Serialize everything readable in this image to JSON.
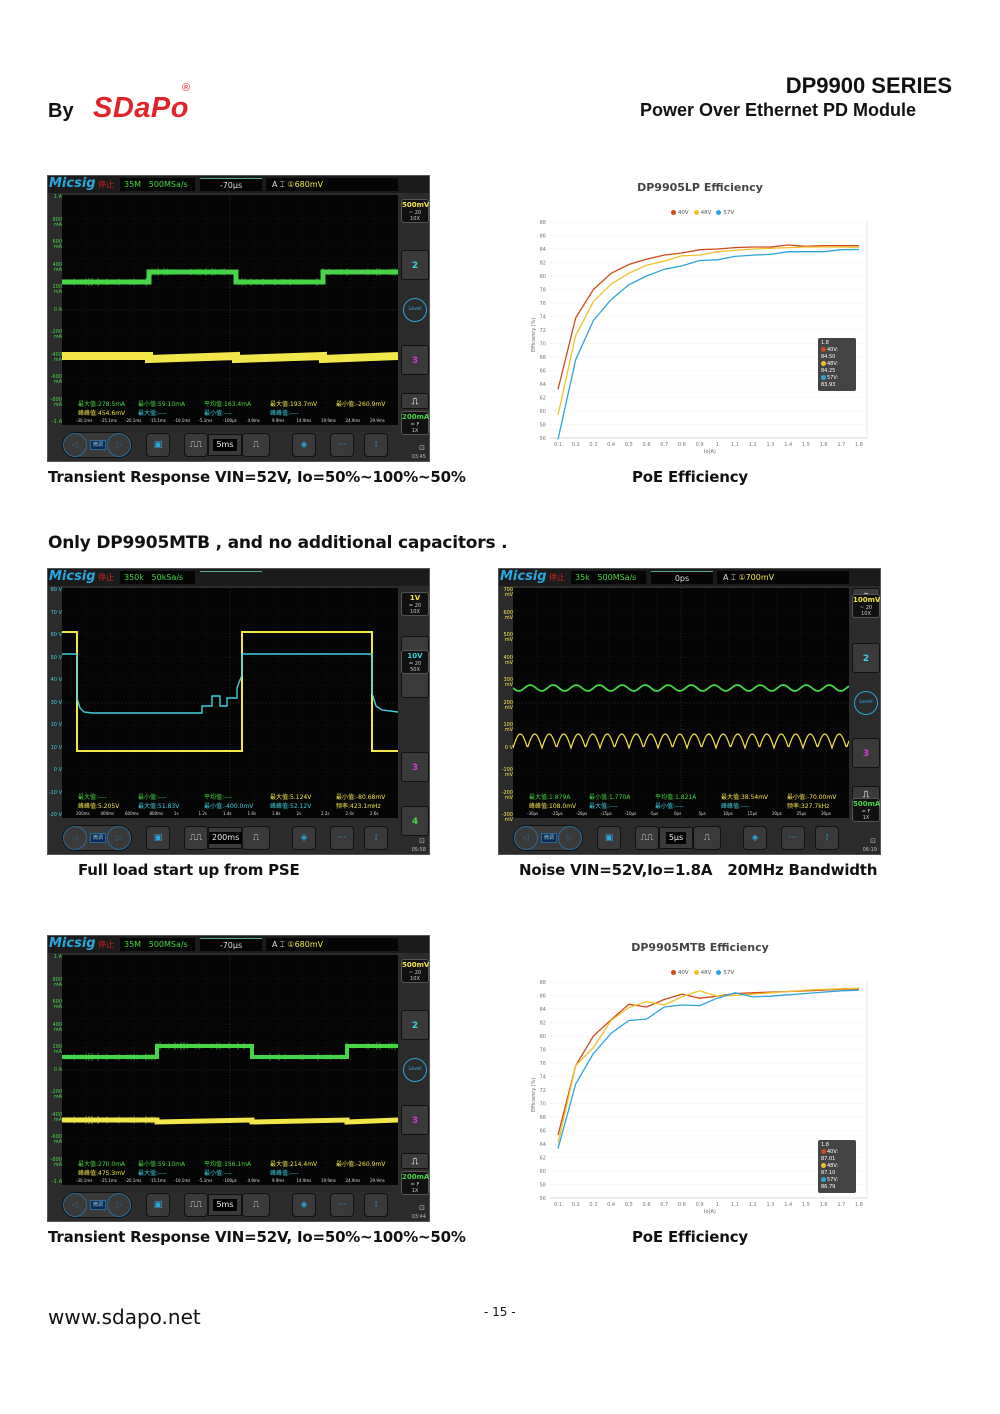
{
  "header": {
    "by": "By",
    "logo": "SDaPo",
    "registered": "®",
    "series": "DP9900 SERIES",
    "subtitle": "Power Over Ethernet PD Module"
  },
  "colors": {
    "logo_red": "#e2232a",
    "series_40V": "#cf4a1d",
    "series_48V": "#f0c12a",
    "series_57V": "#2fa4d9",
    "scope_green": "#47d447",
    "scope_yellow": "#f3e64a",
    "scope_cyan": "#3fd0e0"
  },
  "section_title": "Only DP9905MTB , and no additional capacitors .",
  "scopes": [
    {
      "id": "transient-1",
      "brand": "Micsig",
      "state": "停止",
      "acq_depth": "35M",
      "sample_rate": "500MSa/s",
      "time_offset": "-70μs",
      "trigger": {
        "mode": "A",
        "edge": "⌶",
        "level": "①680mV"
      },
      "y_labels": [
        "1 A",
        "800 mA",
        "600 mA",
        "400 mA",
        "200 mA",
        "0 A",
        "-200 mA",
        "-400 mA",
        "-600 mA",
        "-800 mA",
        "-1 A"
      ],
      "right_panel": {
        "ch1_vdiv": "500mV",
        "ch1_coupling": "~ 20",
        "ch1_probe": "10X",
        "ch2": "2",
        "level": "Level",
        "ch3": "3",
        "ch4_vdiv": "200mA",
        "ch4_coupling": "= F",
        "ch4_probe": "1X"
      },
      "measurements": {
        "row1": [
          "最大值:278.5mA",
          "最小值:59.10mA",
          "平均值:163.4mA",
          "最大值:193.7mV",
          "最小值:-260.9mV"
        ],
        "row2": [
          "峰峰值:454.6mV",
          "最大值:----",
          "最小值:----",
          "峰峰值:----",
          ""
        ]
      },
      "time_ticks": [
        "-30.1ms",
        "-25.1ms",
        "-20.1ms",
        "-15.1ms",
        "-10.1ms",
        "-5.1ms",
        "-100μs",
        "4.9ms",
        "9.9ms",
        "14.9ms",
        "19.9ms",
        "24.9ms",
        "29.9ms"
      ],
      "timebase": "5ms",
      "nav_label": "微调",
      "clock": "03:45"
    },
    {
      "id": "startup",
      "brand": "Micsig",
      "state": "停止",
      "acq_depth": "350k",
      "sample_rate": "50kSa/s",
      "time_offset": "",
      "y_labels": [
        "80 V",
        "70 V",
        "60 V",
        "50 V",
        "40 V",
        "30 V",
        "20 V",
        "10 V",
        "0 V",
        "-10 V",
        "-20 V"
      ],
      "right_panel": {
        "ch1_vdiv": "1V",
        "ch1_coupling": "= 20",
        "ch1_probe": "10X",
        "ch2_vdiv": "10V",
        "ch2_coupling": "= 20",
        "ch2_probe": "50X",
        "ch3": "3",
        "ch4": "4"
      },
      "measurements": {
        "row1": [
          "最大值:----",
          "最小值:----",
          "平均值:----",
          "最大值:5.124V",
          "最小值:-80.68mV"
        ],
        "row2": [
          "峰峰值:5.205V",
          "最大值:51.83V",
          "最小值:-400.0mV",
          "峰峰值:52.12V",
          "频率:423.1mHz"
        ]
      },
      "time_ticks": [
        "200ms",
        "400ms",
        "600ms",
        "800ms",
        "1s",
        "1.2s",
        "1.4s",
        "1.6s",
        "1.8s",
        "2s",
        "2.2s",
        "2.4s",
        "2.6s"
      ],
      "timebase": "200ms",
      "nav_label": "微调",
      "clock": "05:58"
    },
    {
      "id": "noise",
      "brand": "Micsig",
      "state": "停止",
      "acq_depth": "35k",
      "sample_rate": "500MSa/s",
      "time_offset": "0ps",
      "trigger": {
        "mode": "A",
        "edge": "⌶",
        "level": "①700mV"
      },
      "y_labels": [
        "700 mV",
        "600 mV",
        "500 mV",
        "400 mV",
        "300 mV",
        "200 mV",
        "100 mV",
        "0 V",
        "-100 mV",
        "-200 mV",
        "-300 mV"
      ],
      "right_panel": {
        "ch1_vdiv": "100mV",
        "ch1_coupling": "~ 20",
        "ch1_probe": "10X",
        "ch2": "2",
        "level": "Level",
        "ch3": "3",
        "ch4_vdiv": "500mA",
        "ch4_coupling": "= F",
        "ch4_probe": "1X"
      },
      "measurements": {
        "row1": [
          "最大值:1.879A",
          "最小值:1.770A",
          "平均值:1.821A",
          "最大值:38.54mV",
          "最小值:-70.00mV"
        ],
        "row2": [
          "峰峰值:108.0mV",
          "最大值:----",
          "最小值:----",
          "峰峰值:----",
          "频率:327.7kHz"
        ]
      },
      "time_ticks": [
        "-30μs",
        "-25μs",
        "-20μs",
        "-15μs",
        "-10μs",
        "-5μs",
        "0ps",
        "5μs",
        "10μs",
        "15μs",
        "20μs",
        "25μs",
        "30μs"
      ],
      "timebase": "5μs",
      "nav_label": "微调",
      "clock": "06:19"
    },
    {
      "id": "transient-2",
      "brand": "Micsig",
      "state": "停止",
      "acq_depth": "35M",
      "sample_rate": "500MSa/s",
      "time_offset": "-70μs",
      "trigger": {
        "mode": "A",
        "edge": "⌶",
        "level": "①680mV"
      },
      "y_labels": [
        "1 A",
        "800 mA",
        "600 mA",
        "400 mA",
        "200 mA",
        "0 A",
        "-200 mA",
        "-400 mA",
        "-600 mA",
        "-800 mA",
        "-1 A"
      ],
      "right_panel": {
        "ch1_vdiv": "500mV",
        "ch1_coupling": "~ 20",
        "ch1_probe": "10X",
        "ch2": "2",
        "level": "Level",
        "ch3": "3",
        "ch4_vdiv": "200mA",
        "ch4_coupling": "= F",
        "ch4_probe": "1X"
      },
      "measurements": {
        "row1": [
          "最大值:270.0mA",
          "最小值:59.10mA",
          "平均值:156.1mA",
          "最大值:214.4mV",
          "最小值:-260.9mV"
        ],
        "row2": [
          "峰峰值:475.3mV",
          "最大值:----",
          "最小值:----",
          "峰峰值:----",
          ""
        ]
      },
      "time_ticks": [
        "-30.1ms",
        "-25.1ms",
        "-20.1ms",
        "-15.1ms",
        "-10.1ms",
        "-5.1ms",
        "-100μs",
        "4.9ms",
        "9.9ms",
        "14.9ms",
        "19.9ms",
        "24.9ms",
        "29.9ms"
      ],
      "timebase": "5ms",
      "nav_label": "微调",
      "clock": "03:44"
    }
  ],
  "captions": {
    "transient_1": "Transient Response VIN=52V, Io=50%~100%~50%",
    "poe_eff_1": "PoE Efficiency",
    "startup": "Full load start up from PSE",
    "noise": "Noise VIN=52V,Io=1.8A   20MHz Bandwidth",
    "transient_2": "Transient Response VIN=52V, Io=50%~100%~50%",
    "poe_eff_2": "PoE Efficiency"
  },
  "chart_data": [
    {
      "type": "line",
      "title": "DP9905LP Efficiency",
      "xlabel": "Io(A)",
      "ylabel": "Efficiency (%)",
      "ylim": [
        56,
        88
      ],
      "yticks": [
        56,
        58,
        60,
        62,
        64,
        66,
        68,
        70,
        72,
        74,
        76,
        78,
        80,
        82,
        84,
        86,
        88
      ],
      "x": [
        0.1,
        0.2,
        0.3,
        0.4,
        0.5,
        0.6,
        0.7,
        0.8,
        0.9,
        1,
        1.1,
        1.2,
        1.3,
        1.4,
        1.5,
        1.6,
        1.7,
        1.8
      ],
      "legend_position": "top",
      "grid": true,
      "series": [
        {
          "name": "40V",
          "color": "#cf4a1d",
          "values": [
            63.2,
            73.8,
            78.0,
            80.4,
            81.7,
            82.5,
            83.1,
            83.4,
            83.9,
            84.0,
            84.2,
            84.3,
            84.3,
            84.6,
            84.4,
            84.5,
            84.5,
            84.5
          ]
        },
        {
          "name": "48V",
          "color": "#f0c12a",
          "values": [
            59.4,
            71.2,
            76.2,
            78.8,
            80.4,
            81.6,
            82.2,
            83.0,
            83.1,
            83.6,
            83.8,
            84.0,
            84.1,
            84.2,
            84.3,
            84.3,
            84.3,
            84.25
          ]
        },
        {
          "name": "57V",
          "color": "#2fa4d9",
          "values": [
            55.8,
            67.6,
            73.4,
            76.5,
            78.7,
            80.0,
            81.0,
            81.5,
            82.3,
            82.4,
            82.9,
            83.1,
            83.2,
            83.6,
            83.6,
            83.6,
            83.9,
            83.93
          ]
        }
      ],
      "tooltip": {
        "x": "1.8",
        "lines": [
          "40V: 84.50",
          "48V: 84.25",
          "57V: 83.93"
        ]
      }
    },
    {
      "type": "line",
      "title": "DP9905MTB Efficiency",
      "xlabel": "Io(A)",
      "ylabel": "Efficiency (%)",
      "ylim": [
        56,
        88
      ],
      "yticks": [
        56,
        58,
        60,
        62,
        64,
        66,
        68,
        70,
        72,
        74,
        76,
        78,
        80,
        82,
        84,
        86,
        88
      ],
      "x": [
        0.1,
        0.2,
        0.3,
        0.4,
        0.5,
        0.6,
        0.7,
        0.8,
        0.9,
        1,
        1.1,
        1.2,
        1.3,
        1.4,
        1.5,
        1.6,
        1.7,
        1.8
      ],
      "legend_position": "top",
      "grid": true,
      "series": [
        {
          "name": "40V",
          "color": "#cf4a1d",
          "values": [
            65.3,
            75.6,
            80.0,
            82.4,
            84.7,
            84.3,
            85.4,
            86.2,
            85.6,
            85.9,
            86.3,
            86.4,
            86.5,
            86.6,
            86.7,
            86.8,
            86.9,
            87.01
          ]
        },
        {
          "name": "48V",
          "color": "#f0c12a",
          "values": [
            64.1,
            75.6,
            78.3,
            82.3,
            84.2,
            85.1,
            84.6,
            85.8,
            86.7,
            85.9,
            86.0,
            86.2,
            86.4,
            86.6,
            86.8,
            86.9,
            87.0,
            87.1
          ]
        },
        {
          "name": "57V",
          "color": "#2fa4d9",
          "values": [
            63.3,
            72.9,
            77.4,
            80.4,
            82.3,
            82.5,
            84.3,
            84.6,
            84.5,
            85.6,
            86.4,
            85.8,
            85.9,
            86.1,
            86.3,
            86.5,
            86.7,
            86.79
          ]
        }
      ],
      "tooltip": {
        "x": "1.8",
        "lines": [
          "40V: 87.01",
          "48V: 87.10",
          "57V: 86.79"
        ]
      }
    }
  ],
  "footer": {
    "url": "www.sdapo.net",
    "page": "- 15 -"
  }
}
